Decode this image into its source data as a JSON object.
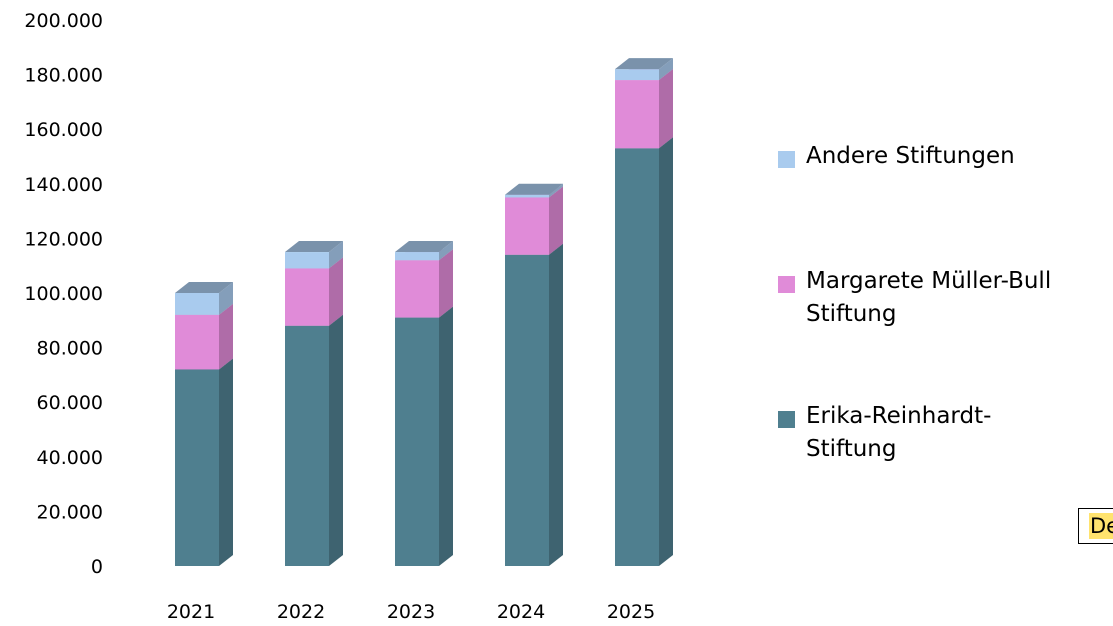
{
  "chart_data": {
    "type": "bar",
    "stacked": true,
    "style": "3d-stacked-column",
    "categories": [
      "2021",
      "2022",
      "2023",
      "2024",
      "2025"
    ],
    "series": [
      {
        "name": "Erika-Reinhardt-Stiftung",
        "name_lines": [
          "Erika-Reinhardt-",
          "Stiftung"
        ],
        "color": "#4f7f8f",
        "values": [
          72000,
          88000,
          91000,
          114000,
          153000
        ]
      },
      {
        "name": "Margarete Müller-Bull Stiftung",
        "name_lines": [
          "Margarete Müller-Bull",
          "Stiftung"
        ],
        "color": "#e08bd8",
        "values": [
          20000,
          21000,
          21000,
          21000,
          25000
        ]
      },
      {
        "name": "Andere Stiftungen",
        "name_lines": [
          "Andere Stiftungen"
        ],
        "color": "#a9cbee",
        "values": [
          8000,
          6000,
          3000,
          1000,
          4000
        ]
      }
    ],
    "ylim": [
      0,
      200000
    ],
    "yticks": [
      0,
      20000,
      40000,
      60000,
      80000,
      100000,
      120000,
      140000,
      160000,
      180000,
      200000
    ],
    "ytick_labels": [
      "0",
      "20.000",
      "40.000",
      "60.000",
      "80.000",
      "100.000",
      "120.000",
      "140.000",
      "160.000",
      "180.000",
      "200.000"
    ],
    "grid": false,
    "legend_position": "right",
    "title": "",
    "xlabel": "",
    "ylabel": ""
  },
  "note_text": "De"
}
